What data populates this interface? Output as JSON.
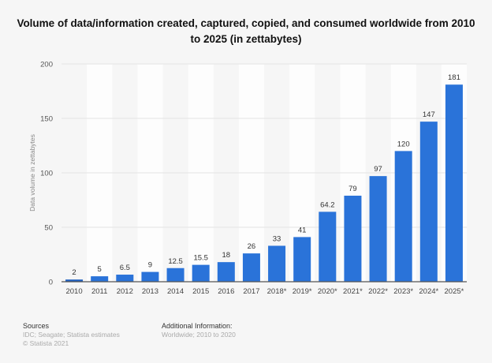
{
  "chart_data": {
    "type": "bar",
    "title": "Volume of data/information created, captured, copied, and consumed worldwide from 2010 to 2025 (in zettabytes)",
    "xlabel": "",
    "ylabel": "Data volume in zettabytes",
    "ylim": [
      0,
      200
    ],
    "yticks": [
      0,
      50,
      100,
      150,
      200
    ],
    "grid": true,
    "categories": [
      "2010",
      "2011",
      "2012",
      "2013",
      "2014",
      "2015",
      "2016",
      "2017",
      "2018*",
      "2019*",
      "2020*",
      "2021*",
      "2022*",
      "2023*",
      "2024*",
      "2025*"
    ],
    "values": [
      2,
      5,
      6.5,
      9,
      12.5,
      15.5,
      18,
      26,
      33,
      41,
      64.2,
      79,
      97,
      120,
      147,
      181
    ],
    "data_labels": [
      "2",
      "5",
      "6.5",
      "9",
      "12.5",
      "15.5",
      "18",
      "26",
      "33",
      "41",
      "64.2",
      "79",
      "97",
      "120",
      "147",
      "181"
    ],
    "bar_color": "#2a73d9"
  },
  "footer": {
    "sources_heading": "Sources",
    "sources": "IDC; Seagate; Statista estimates",
    "copyright": "© Statista 2021",
    "additional_heading": "Additional Information:",
    "additional": "Worldwide; 2010 to 2020"
  }
}
